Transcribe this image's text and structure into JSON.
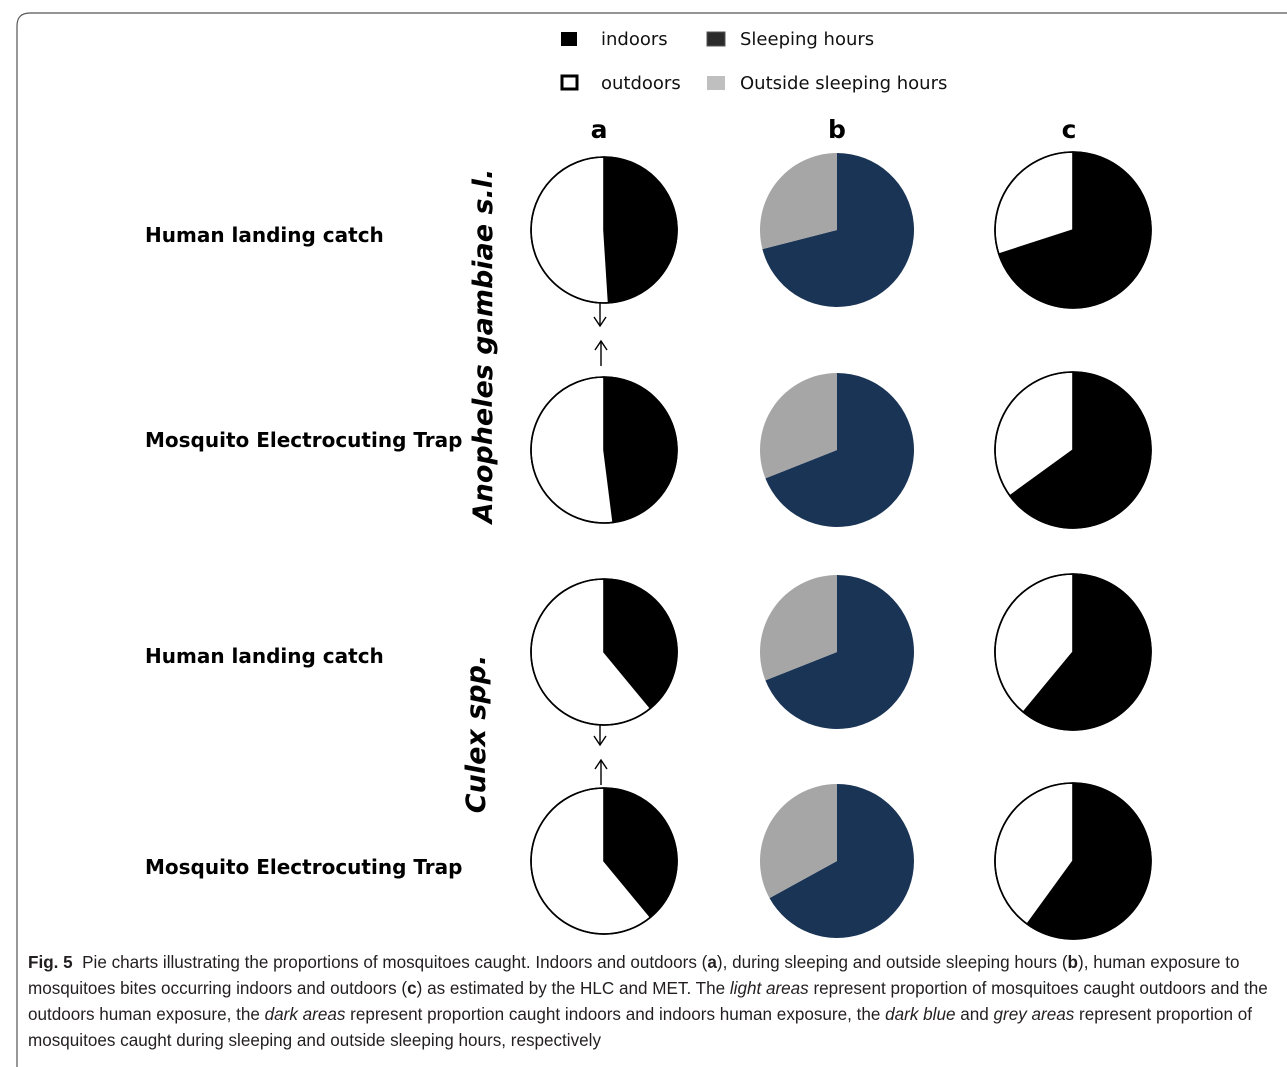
{
  "legend": {
    "indoors": "indoors",
    "outdoors": "outdoors",
    "sleeping": "Sleeping hours",
    "outside_sleeping": "Outside sleeping hours"
  },
  "columns": [
    "a",
    "b",
    "c"
  ],
  "species": [
    "Anopheles gambiae s.l.",
    "Culex spp."
  ],
  "rows": [
    "Human landing catch",
    "Mosquito Electrocuting Trap",
    "Human landing catch",
    "Mosquito Electrocuting Trap"
  ],
  "colors": {
    "indoors": "#000000",
    "outdoors": "#ffffff",
    "sleeping": "#1a3456",
    "outside_sleeping": "#a6a6a6"
  },
  "chart_data": [
    {
      "type": "pie",
      "column": "a",
      "row": "Human landing catch",
      "species": "Anopheles gambiae s.l.",
      "labels": [
        "indoors",
        "outdoors"
      ],
      "values": [
        49,
        51
      ]
    },
    {
      "type": "pie",
      "column": "b",
      "row": "Human landing catch",
      "species": "Anopheles gambiae s.l.",
      "labels": [
        "Sleeping hours",
        "Outside sleeping hours"
      ],
      "values": [
        71,
        29
      ]
    },
    {
      "type": "pie",
      "column": "c",
      "row": "Human landing catch",
      "species": "Anopheles gambiae s.l.",
      "labels": [
        "indoors",
        "outdoors"
      ],
      "values": [
        70,
        30
      ]
    },
    {
      "type": "pie",
      "column": "a",
      "row": "Mosquito Electrocuting Trap",
      "species": "Anopheles gambiae s.l.",
      "labels": [
        "indoors",
        "outdoors"
      ],
      "values": [
        48,
        52
      ]
    },
    {
      "type": "pie",
      "column": "b",
      "row": "Mosquito Electrocuting Trap",
      "species": "Anopheles gambiae s.l.",
      "labels": [
        "Sleeping hours",
        "Outside sleeping hours"
      ],
      "values": [
        69,
        31
      ]
    },
    {
      "type": "pie",
      "column": "c",
      "row": "Mosquito Electrocuting Trap",
      "species": "Anopheles gambiae s.l.",
      "labels": [
        "indoors",
        "outdoors"
      ],
      "values": [
        65,
        35
      ]
    },
    {
      "type": "pie",
      "column": "a",
      "row": "Human landing catch",
      "species": "Culex spp.",
      "labels": [
        "indoors",
        "outdoors"
      ],
      "values": [
        39,
        61
      ]
    },
    {
      "type": "pie",
      "column": "b",
      "row": "Human landing catch",
      "species": "Culex spp.",
      "labels": [
        "Sleeping hours",
        "Outside sleeping hours"
      ],
      "values": [
        69,
        31
      ]
    },
    {
      "type": "pie",
      "column": "c",
      "row": "Human landing catch",
      "species": "Culex spp.",
      "labels": [
        "indoors",
        "outdoors"
      ],
      "values": [
        61,
        39
      ]
    },
    {
      "type": "pie",
      "column": "a",
      "row": "Mosquito Electrocuting Trap",
      "species": "Culex spp.",
      "labels": [
        "indoors",
        "outdoors"
      ],
      "values": [
        39,
        61
      ]
    },
    {
      "type": "pie",
      "column": "b",
      "row": "Mosquito Electrocuting Trap",
      "species": "Culex spp.",
      "labels": [
        "Sleeping hours",
        "Outside sleeping hours"
      ],
      "values": [
        67,
        33
      ]
    },
    {
      "type": "pie",
      "column": "c",
      "row": "Mosquito Electrocuting Trap",
      "species": "Culex spp.",
      "labels": [
        "indoors",
        "outdoors"
      ],
      "values": [
        60,
        40
      ]
    }
  ],
  "caption": {
    "fig": "Fig. 5",
    "part1": "Pie charts illustrating the proportions of mosquitoes caught. Indoors and outdoors (",
    "a": "a",
    "part2": "), during sleeping and outside sleeping hours (",
    "b": "b",
    "part3": "), human exposure to mosquitoes bites occurring indoors and outdoors (",
    "c": "c",
    "part4": ") as estimated by the HLC and MET. The ",
    "light_areas": "light areas",
    "part5": " represent proportion of mosquitoes caught outdoors and the outdoors human exposure, the ",
    "dark_areas": "dark areas",
    "part6": " represent proportion caught indoors and indoors human exposure, the ",
    "dark_blue": "dark blue",
    "part7": " and ",
    "grey_areas": "grey areas",
    "part8": " represent proportion of mosquitoes caught during sleeping and outside sleeping hours, respectively"
  }
}
